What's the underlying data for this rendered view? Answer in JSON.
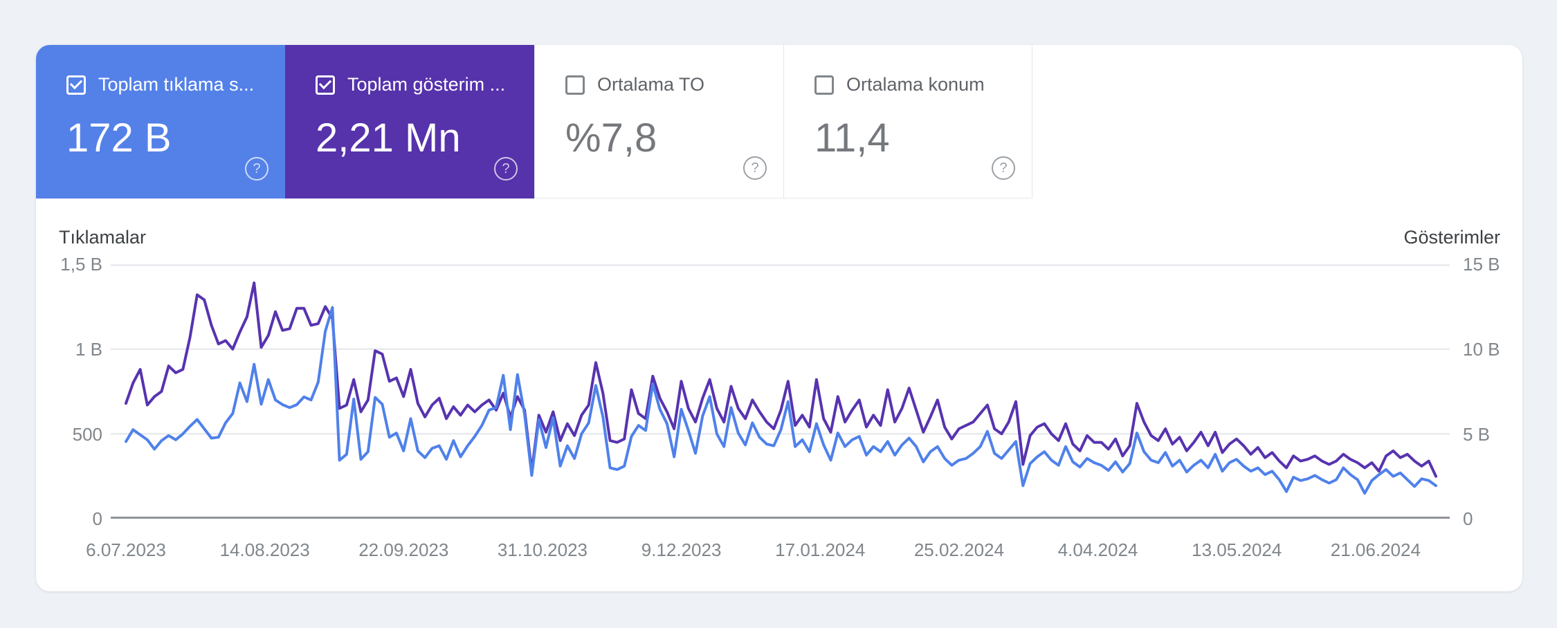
{
  "cards": [
    {
      "id": "clicks",
      "label": "Toplam tıklama s...",
      "value": "172 B",
      "checked": true,
      "bg": "#5481e8",
      "help_glyph": "?"
    },
    {
      "id": "impressions",
      "label": "Toplam gösterim ...",
      "value": "2,21 Mn",
      "checked": true,
      "bg": "#5632ab",
      "help_glyph": "?"
    },
    {
      "id": "ctr",
      "label": "Ortalama TO",
      "value": "%7,8",
      "checked": false,
      "bg": "#ffffff",
      "help_glyph": "?"
    },
    {
      "id": "position",
      "label": "Ortalama konum",
      "value": "11,4",
      "checked": false,
      "bg": "#ffffff",
      "help_glyph": "?"
    }
  ],
  "chart_data": {
    "type": "line",
    "title": "",
    "grid": true,
    "legend_position": "none",
    "x_labels": [
      "6.07.2023",
      "14.08.2023",
      "22.09.2023",
      "31.10.2023",
      "9.12.2023",
      "17.01.2024",
      "25.02.2024",
      "4.04.2024",
      "13.05.2024",
      "21.06.2024"
    ],
    "x_range": "6.07.2023 – 8.07.2024, one point per 2 days",
    "y_left": {
      "label": "Tıklamalar",
      "ticks": [
        "1,5 B",
        "1 B",
        "500",
        "0"
      ],
      "max": 1500,
      "min": 0
    },
    "y_right": {
      "label": "Gösterimler",
      "ticks": [
        "15 B",
        "10 B",
        "5 B",
        "0"
      ],
      "max": 15,
      "min": 0
    },
    "series": [
      {
        "name": "Tıklamalar (clicks)",
        "axis": "left",
        "unit": "clicks",
        "color": "#4f81ea",
        "values": [
          455,
          525,
          495,
          465,
          410,
          460,
          490,
          465,
          500,
          545,
          585,
          530,
          475,
          480,
          565,
          620,
          800,
          690,
          910,
          675,
          820,
          700,
          672,
          655,
          672,
          718,
          700,
          805,
          1105,
          1245,
          345,
          380,
          705,
          350,
          395,
          715,
          675,
          480,
          505,
          400,
          590,
          400,
          360,
          415,
          430,
          350,
          460,
          365,
          430,
          485,
          550,
          640,
          655,
          845,
          525,
          850,
          615,
          255,
          585,
          420,
          595,
          310,
          430,
          355,
          500,
          565,
          785,
          600,
          300,
          290,
          310,
          485,
          550,
          520,
          795,
          645,
          560,
          365,
          645,
          520,
          385,
          605,
          720,
          500,
          425,
          655,
          505,
          435,
          565,
          480,
          440,
          430,
          525,
          690,
          425,
          465,
          395,
          560,
          435,
          345,
          505,
          425,
          465,
          485,
          375,
          425,
          395,
          455,
          375,
          435,
          475,
          425,
          335,
          395,
          425,
          355,
          315,
          345,
          355,
          385,
          425,
          515,
          385,
          355,
          405,
          455,
          195,
          325,
          365,
          395,
          345,
          315,
          425,
          335,
          305,
          355,
          330,
          315,
          285,
          335,
          275,
          325,
          505,
          395,
          345,
          330,
          390,
          310,
          345,
          275,
          315,
          345,
          300,
          380,
          280,
          330,
          350,
          310,
          280,
          300,
          260,
          280,
          230,
          160,
          245,
          225,
          235,
          255,
          230,
          210,
          230,
          300,
          260,
          230,
          150,
          225,
          260,
          290,
          250,
          270,
          230,
          190,
          235,
          225,
          195
        ]
      },
      {
        "name": "Gösterimler (impressions)",
        "axis": "right",
        "unit": "B (thousands)",
        "color": "#5733af",
        "values": [
          6.8,
          8.0,
          8.8,
          6.7,
          7.2,
          7.5,
          9.0,
          8.6,
          8.8,
          10.7,
          13.2,
          12.9,
          11.4,
          10.3,
          10.5,
          10.0,
          11.0,
          11.9,
          13.9,
          10.1,
          10.8,
          12.2,
          11.1,
          11.2,
          12.4,
          12.4,
          11.4,
          11.5,
          12.5,
          11.8,
          6.5,
          6.7,
          8.2,
          6.3,
          7.0,
          9.9,
          9.7,
          8.1,
          8.3,
          7.2,
          8.8,
          6.8,
          6.0,
          6.7,
          7.1,
          5.9,
          6.6,
          6.1,
          6.7,
          6.3,
          6.7,
          7.0,
          6.4,
          7.4,
          6.0,
          7.2,
          6.4,
          2.8,
          6.1,
          5.1,
          6.3,
          4.6,
          5.6,
          4.9,
          6.1,
          6.7,
          9.2,
          7.4,
          4.6,
          4.5,
          4.7,
          7.6,
          6.2,
          5.9,
          8.4,
          7.1,
          6.3,
          5.3,
          8.1,
          6.5,
          5.7,
          7.1,
          8.2,
          6.5,
          5.7,
          7.8,
          6.5,
          5.9,
          7.0,
          6.3,
          5.7,
          5.3,
          6.4,
          8.1,
          5.5,
          6.1,
          5.4,
          8.2,
          5.9,
          5.1,
          7.2,
          5.7,
          6.4,
          7.0,
          5.4,
          6.1,
          5.5,
          7.6,
          5.7,
          6.5,
          7.7,
          6.4,
          5.1,
          6.0,
          7.0,
          5.4,
          4.7,
          5.3,
          5.5,
          5.7,
          6.2,
          6.7,
          5.3,
          5.0,
          5.7,
          6.9,
          3.2,
          4.9,
          5.4,
          5.6,
          5.0,
          4.6,
          5.6,
          4.4,
          4.0,
          4.9,
          4.5,
          4.5,
          4.1,
          4.7,
          3.7,
          4.3,
          6.8,
          5.7,
          4.9,
          4.6,
          5.3,
          4.4,
          4.8,
          4.0,
          4.5,
          5.1,
          4.3,
          5.1,
          3.9,
          4.4,
          4.7,
          4.3,
          3.8,
          4.2,
          3.6,
          3.9,
          3.4,
          3.0,
          3.7,
          3.4,
          3.5,
          3.7,
          3.4,
          3.2,
          3.4,
          3.8,
          3.5,
          3.3,
          3.0,
          3.3,
          2.8,
          3.7,
          4.0,
          3.6,
          3.8,
          3.4,
          3.1,
          3.4,
          2.5
        ]
      }
    ]
  },
  "colors": {
    "page_bg": "#eef1f5",
    "panel_bg": "#ffffff",
    "card_clicks_bg": "#5481e8",
    "card_impressions_bg": "#5632ab",
    "gridline": "#e8eaed",
    "zero_line": "#8e9398",
    "tick_text": "#80868b",
    "axis_title_text": "#3c4043"
  }
}
